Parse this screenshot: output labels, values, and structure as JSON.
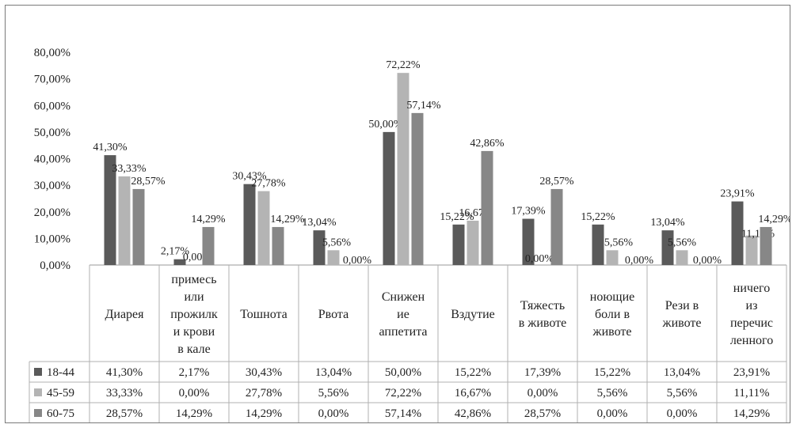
{
  "chart_data": {
    "type": "bar",
    "ylim": [
      0,
      80
    ],
    "ytick_labels": [
      "0,00%",
      "10,00%",
      "20,00%",
      "30,00%",
      "40,00%",
      "50,00%",
      "60,00%",
      "70,00%",
      "80,00%"
    ],
    "categories": [
      [
        "Диарея"
      ],
      [
        "примесь",
        "или",
        "прожилк",
        "и крови",
        "в кале"
      ],
      [
        "Тошнота"
      ],
      [
        "Рвота"
      ],
      [
        "Снижен",
        "ие",
        "аппетита"
      ],
      [
        "Вздутие"
      ],
      [
        "Тяжесть",
        "в животе"
      ],
      [
        "ноющие",
        "боли в",
        "животе"
      ],
      [
        "Рези в",
        "животе"
      ],
      [
        "ничего",
        "из",
        "перечис",
        "ленного"
      ]
    ],
    "series": [
      {
        "name": "18-44",
        "color": "#5a5a5a",
        "values": [
          41.3,
          2.17,
          30.43,
          13.04,
          50.0,
          15.22,
          17.39,
          15.22,
          13.04,
          23.91
        ],
        "labels": [
          "41,30%",
          "2,17%",
          "30,43%",
          "13,04%",
          "50,00%",
          "15,22%",
          "17,39%",
          "15,22%",
          "13,04%",
          "23,91%"
        ]
      },
      {
        "name": "45-59",
        "color": "#b4b4b4",
        "values": [
          33.33,
          0.0,
          27.78,
          5.56,
          72.22,
          16.67,
          0.0,
          5.56,
          5.56,
          11.11
        ],
        "labels": [
          "33,33%",
          "0,00%",
          "27,78%",
          "5,56%",
          "72,22%",
          "16,67%",
          "0,00%",
          "5,56%",
          "5,56%",
          "11,11%"
        ]
      },
      {
        "name": "60-75",
        "color": "#878787",
        "values": [
          28.57,
          14.29,
          14.29,
          0.0,
          57.14,
          42.86,
          28.57,
          0.0,
          0.0,
          14.29
        ],
        "labels": [
          "28,57%",
          "14,29%",
          "14,29%",
          "0,00%",
          "57,14%",
          "42,86%",
          "28,57%",
          "0,00%",
          "0,00%",
          "14,29%"
        ]
      }
    ]
  }
}
